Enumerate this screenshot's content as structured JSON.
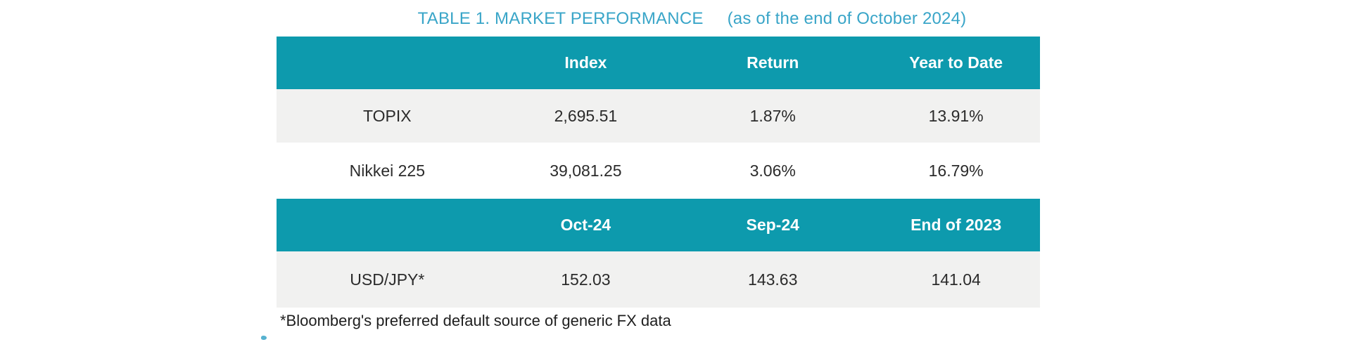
{
  "title": {
    "main": "TABLE 1. MARKET PERFORMANCE",
    "subtitle": "(as of the end of October 2024)"
  },
  "market_table": {
    "section1": {
      "headers": [
        "Index",
        "Return",
        "Year to Date"
      ],
      "rows": [
        [
          "TOPIX",
          "2,695.51",
          "1.87%",
          "13.91%"
        ],
        [
          "Nikkei 225",
          "39,081.25",
          "3.06%",
          "16.79%"
        ]
      ]
    },
    "section2": {
      "headers": [
        "Oct-24",
        "Sep-24",
        "End of 2023"
      ],
      "rows": [
        [
          "USD/JPY*",
          "152.03",
          "143.63",
          "141.04"
        ]
      ]
    }
  },
  "footnote": "*Bloomberg's preferred default source of generic FX data",
  "colors": {
    "header_bg": "#0d9aad",
    "header_text": "#ffffff",
    "title_text": "#39a5c8",
    "row_alt_bg": "#f1f1f0",
    "cell_text": "#2b2b2b",
    "footnote_text": "#1e1e1e"
  }
}
